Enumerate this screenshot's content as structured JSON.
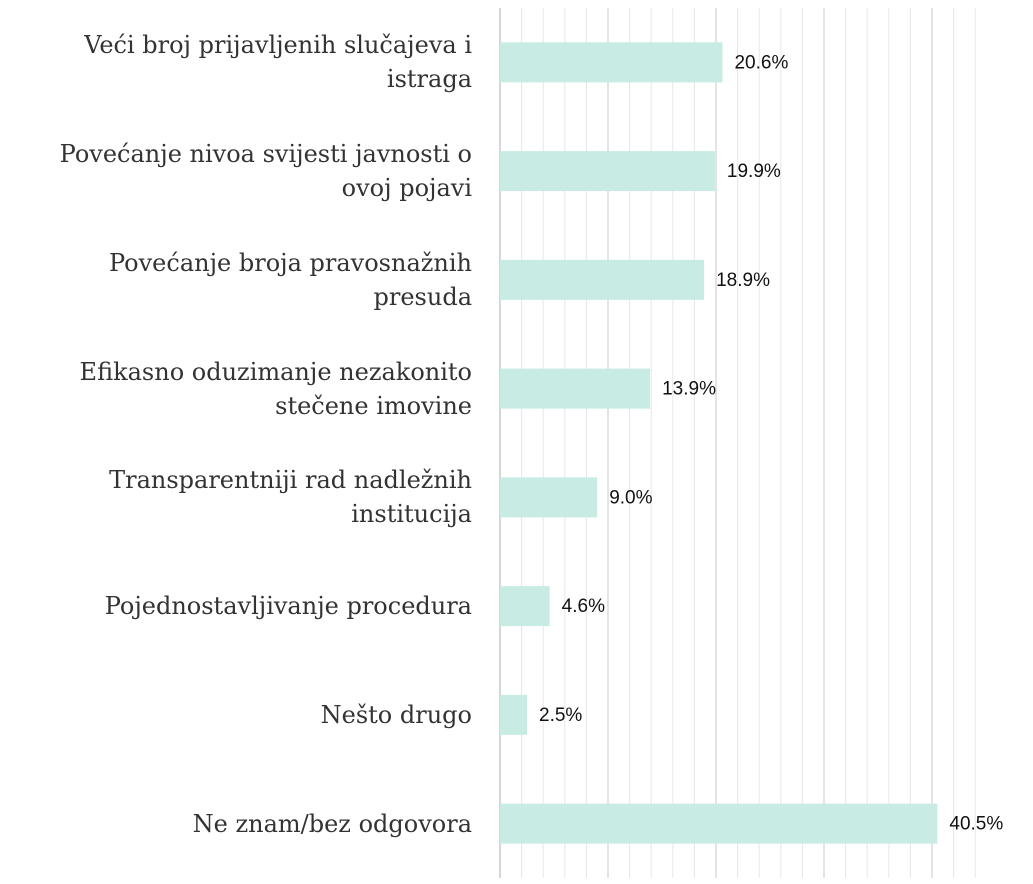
{
  "chart_data": {
    "type": "hbar",
    "categories": [
      "Veći broj prijavljenih slučajeva i istraga",
      "Povećanje nivoa svijesti javnosti o ovoj pojavi",
      "Povećanje broja pravosnažnih presuda",
      "Efikasno oduzimanje nezakonito stečene imovine",
      "Transparentniji rad nadležnih institucija",
      "Pojednostavljivanje procedura",
      "Nešto drugo",
      "Ne znam/bez odgovora"
    ],
    "values": [
      20.6,
      19.9,
      18.9,
      13.9,
      9.0,
      4.6,
      2.5,
      40.5
    ],
    "value_labels": [
      "20.6%",
      "19.9%",
      "18.9%",
      "13.9%",
      "9.0%",
      "4.6%",
      "2.5%",
      "40.5%"
    ],
    "color": "#c8ebe3",
    "xlim": [
      0,
      45
    ],
    "xticks": [
      0,
      2,
      4,
      6,
      8,
      10,
      12,
      14,
      16,
      18,
      20,
      22,
      24,
      26,
      28,
      30,
      32,
      34,
      36,
      38,
      40,
      42,
      44
    ],
    "grid": true
  }
}
